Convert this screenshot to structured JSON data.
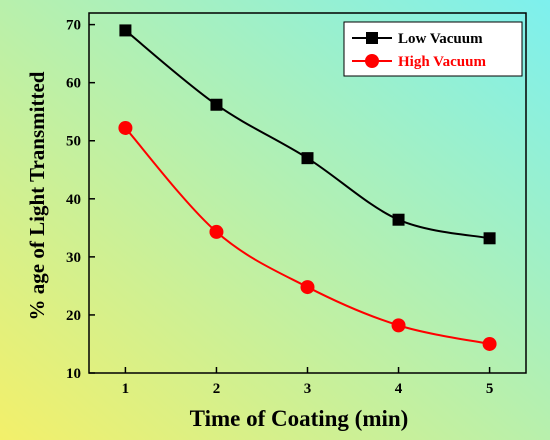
{
  "chart_data": {
    "type": "line",
    "xlabel": "Time of Coating (min)",
    "ylabel": "% age of Light Transmitted",
    "xlim": [
      0.6,
      5.4
    ],
    "ylim": [
      10,
      72
    ],
    "x_ticks": [
      1,
      2,
      3,
      4,
      5
    ],
    "y_ticks": [
      10,
      20,
      30,
      40,
      50,
      60,
      70
    ],
    "x": [
      1,
      2,
      3,
      4,
      5
    ],
    "series": [
      {
        "name": "Low Vacuum",
        "color": "#000000",
        "marker": "square",
        "values": [
          69,
          56.2,
          47,
          36.4,
          33.2
        ]
      },
      {
        "name": "High Vacuum",
        "color": "#ff0000",
        "marker": "circle",
        "values": [
          52.2,
          34.3,
          24.8,
          18.2,
          15
        ]
      }
    ],
    "legend_position": "top-right",
    "background_gradient": [
      "#f3f06a",
      "#7df0ee"
    ],
    "grid": false
  }
}
